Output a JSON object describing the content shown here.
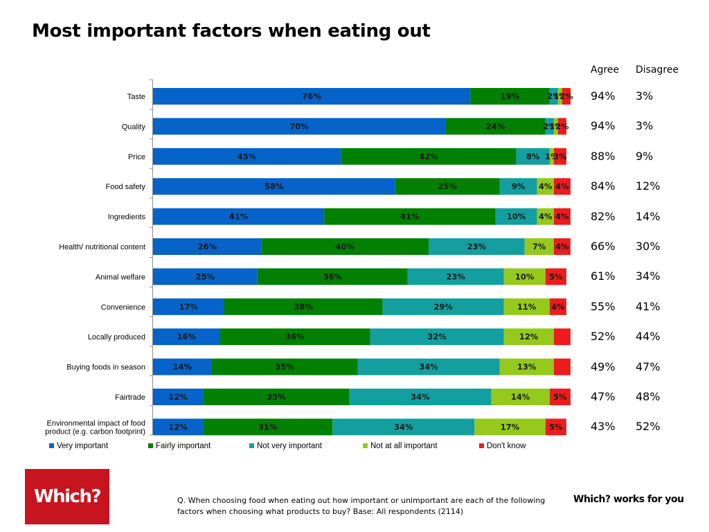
{
  "title": "Most important factors when eating out",
  "summary_headers": {
    "agree": "Agree",
    "disagree": "Disagree"
  },
  "footnote": "Q. When choosing food when eating out how important or unimportant are each of the following factors when choosing what products to buy? Base: All respondents (2114)",
  "logo_text": "Which?",
  "tagline": "Which? works for you",
  "colors": {
    "very_important": "#0563c9",
    "fairly_important": "#018001",
    "not_very_important": "#139f9f",
    "not_at_all_important": "#95c91c",
    "dont_know": "#ec1c1c",
    "brand_red": "#c8141e"
  },
  "chart_data": {
    "type": "bar",
    "orientation": "horizontal",
    "stacked": true,
    "categories": [
      "Taste",
      "Quality",
      "Price",
      "Food safety",
      "Ingredients",
      "Health/ nutritional content",
      "Animal welfare",
      "Convenience",
      "Locally produced",
      "Buying foods in season",
      "Fairtrade",
      "Environmental impact of food product (e.g. carbon footprint)"
    ],
    "series": [
      {
        "name": "Very important",
        "color": "#0563c9",
        "values": [
          76,
          70,
          45,
          58,
          41,
          26,
          25,
          17,
          16,
          14,
          12,
          12
        ]
      },
      {
        "name": "Fairly important",
        "color": "#018001",
        "values": [
          19,
          24,
          42,
          25,
          41,
          40,
          36,
          38,
          36,
          35,
          35,
          31
        ]
      },
      {
        "name": "Not very important",
        "color": "#139f9f",
        "values": [
          2,
          2,
          8,
          9,
          10,
          23,
          23,
          29,
          32,
          34,
          34,
          34
        ]
      },
      {
        "name": "Not at all important",
        "color": "#95c91c",
        "values": [
          1,
          1,
          1,
          4,
          4,
          7,
          10,
          11,
          12,
          13,
          14,
          17
        ]
      },
      {
        "name": "Don't know",
        "color": "#ec1c1c",
        "values": [
          2,
          2,
          3,
          4,
          4,
          4,
          5,
          4,
          4,
          4,
          5,
          5
        ]
      }
    ],
    "segment_labels": [
      [
        "76%",
        "19%",
        "2%",
        "1%",
        "2%"
      ],
      [
        "70%",
        "24%",
        "2%",
        "1%",
        "2%"
      ],
      [
        "45%",
        "42%",
        "8%",
        "1%",
        "3%"
      ],
      [
        "58%",
        "25%",
        "9%",
        "4%",
        "4%"
      ],
      [
        "41%",
        "41%",
        "10%",
        "4%",
        "4%"
      ],
      [
        "26%",
        "40%",
        "23%",
        "7%",
        "4%"
      ],
      [
        "25%",
        "36%",
        "23%",
        "10%",
        "5%"
      ],
      [
        "17%",
        "38%",
        "29%",
        "11%",
        "4%"
      ],
      [
        "16%",
        "36%",
        "32%",
        "12%",
        ""
      ],
      [
        "14%",
        "35%",
        "34%",
        "13%",
        ""
      ],
      [
        "12%",
        "35%",
        "34%",
        "14%",
        "5%"
      ],
      [
        "12%",
        "31%",
        "34%",
        "17%",
        "5%"
      ]
    ],
    "agree": [
      "94%",
      "94%",
      "88%",
      "84%",
      "82%",
      "66%",
      "61%",
      "55%",
      "52%",
      "49%",
      "47%",
      "43%"
    ],
    "disagree": [
      "3%",
      "3%",
      "9%",
      "12%",
      "14%",
      "30%",
      "34%",
      "41%",
      "44%",
      "47%",
      "48%",
      "52%"
    ],
    "xlim": [
      0,
      100
    ],
    "legend_position": "bottom",
    "grid": false
  }
}
